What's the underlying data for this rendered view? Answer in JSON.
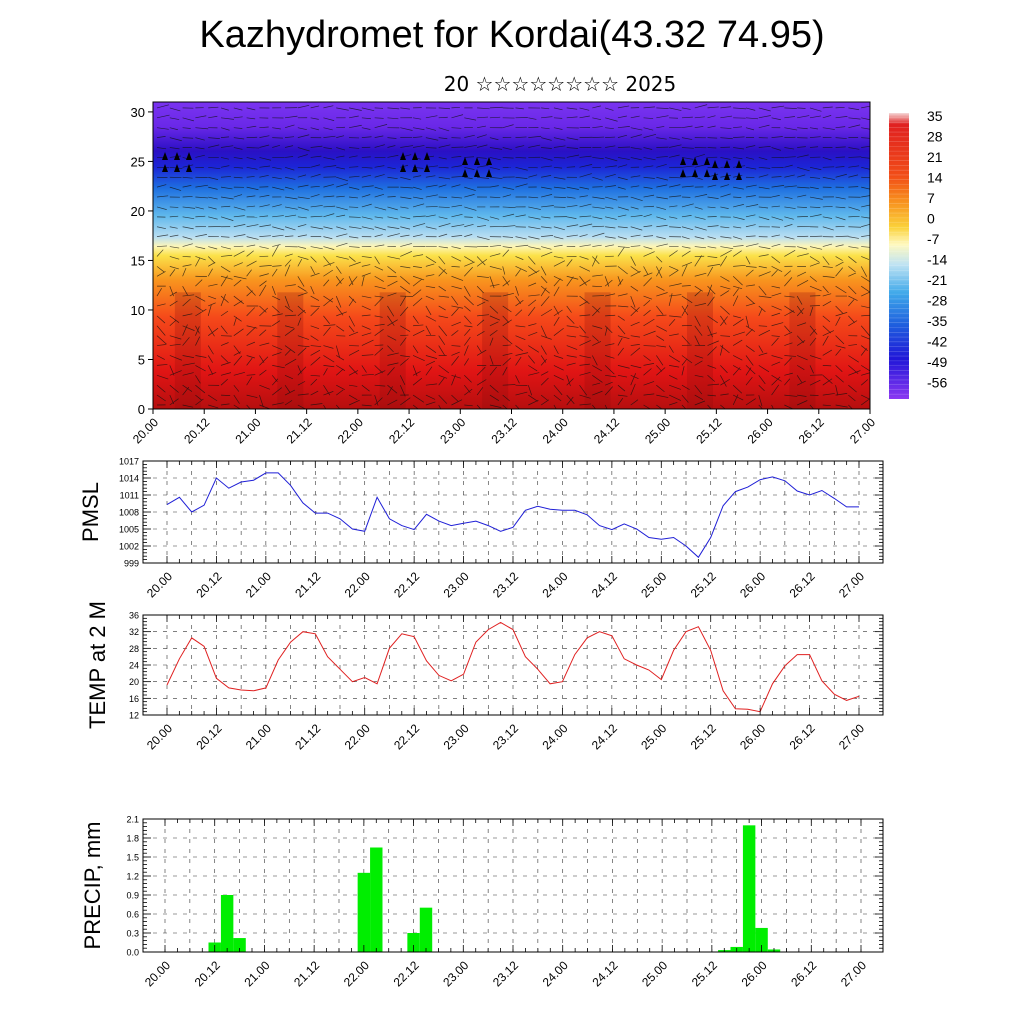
{
  "header": {
    "title": "Kazhydromet for Kordai(43.32 74.95)",
    "subtitle": "20 ☆☆☆☆☆☆☆☆ 2025"
  },
  "time_labels": [
    "20.00",
    "20.12",
    "21.00",
    "21.12",
    "22.00",
    "22.12",
    "23.00",
    "23.12",
    "24.00",
    "24.12",
    "25.00",
    "25.12",
    "26.00",
    "26.12",
    "27.00"
  ],
  "colors": {
    "pmsl_line": "#1f1fd6",
    "temp_line": "#e02020",
    "precip_bar": "#00ee00"
  },
  "chart_data": [
    {
      "type": "heatmap",
      "title": "Kazhydromet for Kordai(43.32 74.95)",
      "subtitle": "20 ☆☆☆☆☆☆☆☆ 2025",
      "x": [
        "20.00",
        "20.12",
        "21.00",
        "21.12",
        "22.00",
        "22.12",
        "23.00",
        "23.12",
        "24.00",
        "24.12",
        "25.00",
        "25.12",
        "26.00",
        "26.12",
        "27.00"
      ],
      "y_ticks": [
        0,
        5,
        10,
        15,
        20,
        25,
        30
      ],
      "ylim": [
        0,
        31
      ],
      "colorbar_labels": [
        "35",
        "28",
        "21",
        "14",
        "7",
        "0",
        "-7",
        "-14",
        "-21",
        "-28",
        "-35",
        "-42",
        "-49",
        "-56"
      ],
      "colorbar_range": [
        -63,
        38
      ],
      "overlay": "wind vectors"
    },
    {
      "type": "line",
      "ylabel": "PMSL",
      "y_ticks": [
        "999",
        "1002",
        "1005",
        "1008",
        "1011",
        "1014",
        "1017"
      ],
      "ylim": [
        999,
        1017
      ],
      "x_ticks": [
        "20.00",
        "20.12",
        "21.00",
        "21.12",
        "22.00",
        "22.12",
        "23.00",
        "23.12",
        "24.00",
        "24.12",
        "25.00",
        "25.12",
        "26.00",
        "26.12",
        "27.00"
      ],
      "x_step_hours": 3,
      "grid": true,
      "values": [
        1009.3,
        1010.6,
        1008.0,
        1009.2,
        1014.0,
        1012.2,
        1013.3,
        1013.6,
        1014.9,
        1014.9,
        1012.7,
        1009.6,
        1007.8,
        1007.8,
        1006.8,
        1005.0,
        1004.6,
        1010.6,
        1006.8,
        1005.6,
        1004.9,
        1007.6,
        1006.4,
        1005.6,
        1006.0,
        1006.4,
        1005.6,
        1004.6,
        1005.3,
        1008.3,
        1009.0,
        1008.5,
        1008.3,
        1008.3,
        1007.5,
        1005.6,
        1004.9,
        1005.9,
        1005.0,
        1003.5,
        1003.2,
        1003.5,
        1002.0,
        1000.0,
        1003.5,
        1009.1,
        1011.6,
        1012.4,
        1013.7,
        1014.2,
        1013.5,
        1011.7,
        1011.0,
        1011.8,
        1010.4,
        1008.9,
        1008.9
      ]
    },
    {
      "type": "line",
      "ylabel": "TEMP at 2 M",
      "y_ticks": [
        "12",
        "16",
        "20",
        "24",
        "28",
        "32",
        "36"
      ],
      "ylim": [
        12,
        36
      ],
      "x_ticks": [
        "20.00",
        "20.12",
        "21.00",
        "21.12",
        "22.00",
        "22.12",
        "23.00",
        "23.12",
        "24.00",
        "24.12",
        "25.00",
        "25.12",
        "26.00",
        "26.12",
        "27.00"
      ],
      "x_step_hours": 3,
      "grid": true,
      "values": [
        19.2,
        25.5,
        30.5,
        28.5,
        20.8,
        18.5,
        18.0,
        17.8,
        18.5,
        25.2,
        29.5,
        32.0,
        31.5,
        26.0,
        23.0,
        20.0,
        21.0,
        19.5,
        28.0,
        31.5,
        30.8,
        25.0,
        21.5,
        20.2,
        21.8,
        29.5,
        32.5,
        34.2,
        32.5,
        26.0,
        23.0,
        19.5,
        20.0,
        26.5,
        30.5,
        32.0,
        31.0,
        25.5,
        24.0,
        22.8,
        20.5,
        27.5,
        32.0,
        33.2,
        27.5,
        17.8,
        13.5,
        13.4,
        12.8,
        19.5,
        23.8,
        26.5,
        26.5,
        20.2,
        17.0,
        15.5,
        16.5
      ]
    },
    {
      "type": "bar",
      "ylabel": "PRECIP, mm",
      "y_ticks": [
        "0.0",
        "0.3",
        "0.6",
        "0.9",
        "1.2",
        "1.5",
        "1.8",
        "2.1"
      ],
      "ylim": [
        0,
        2.1
      ],
      "x_ticks": [
        "20.00",
        "20.12",
        "21.00",
        "21.12",
        "22.00",
        "22.12",
        "23.00",
        "23.12",
        "24.00",
        "24.12",
        "25.00",
        "25.12",
        "26.00",
        "26.12",
        "27.00"
      ],
      "x_step_hours": 3,
      "grid": true,
      "values": [
        0,
        0,
        0,
        0,
        0.15,
        0.9,
        0.22,
        0,
        0,
        0,
        0,
        0,
        0,
        0,
        0,
        0,
        1.25,
        1.65,
        0,
        0,
        0.3,
        0.7,
        0,
        0,
        0,
        0,
        0,
        0,
        0,
        0,
        0,
        0,
        0,
        0,
        0,
        0,
        0,
        0,
        0,
        0,
        0,
        0,
        0,
        0,
        0,
        0.03,
        0.08,
        2.0,
        0.38,
        0.04,
        0,
        0,
        0,
        0,
        0,
        0,
        0
      ]
    }
  ]
}
